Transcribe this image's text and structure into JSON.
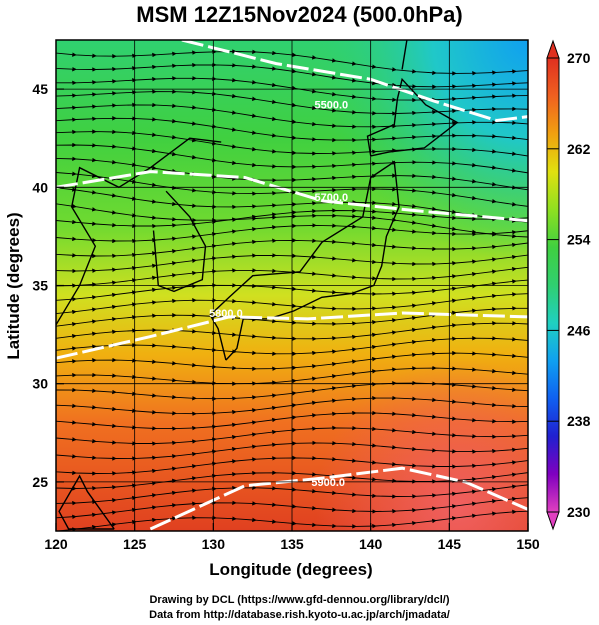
{
  "title": "MSM 12Z15Nov2024 (500.0hPa)",
  "x_axis": {
    "label": "Longitude (degrees)",
    "ticks": [
      "120",
      "125",
      "130",
      "135",
      "140",
      "145",
      "150"
    ],
    "range": [
      120,
      150
    ]
  },
  "y_axis": {
    "label": "Latitude  (degrees)",
    "ticks": [
      "25",
      "30",
      "35",
      "40",
      "45"
    ],
    "range": [
      22.5,
      47.5
    ]
  },
  "colorbar": {
    "ticks": [
      "270",
      "262",
      "254",
      "246",
      "238",
      "230"
    ],
    "min": 230,
    "max": 270,
    "colors": [
      "#e040c0",
      "#8000c0",
      "#2020d0",
      "#1060f0",
      "#10a0f0",
      "#20d0c0",
      "#30d070",
      "#40d040",
      "#90e020",
      "#e0e010",
      "#f0a010",
      "#f06020",
      "#e03020"
    ]
  },
  "contour_labels": [
    {
      "text": "5500.0",
      "lon": 137.5,
      "lat": 44.0
    },
    {
      "text": "5700.0",
      "lon": 137.5,
      "lat": 39.3
    },
    {
      "text": "5800.0",
      "lon": 130.8,
      "lat": 33.4
    },
    {
      "text": "5900.0",
      "lon": 137.3,
      "lat": 24.8
    }
  ],
  "credits": [
    "Drawing by DCL (https://www.gfd-dennou.org/library/dcl/)",
    "Data from http://database.rish.kyoto-u.ac.jp/arch/jmadata/"
  ]
}
